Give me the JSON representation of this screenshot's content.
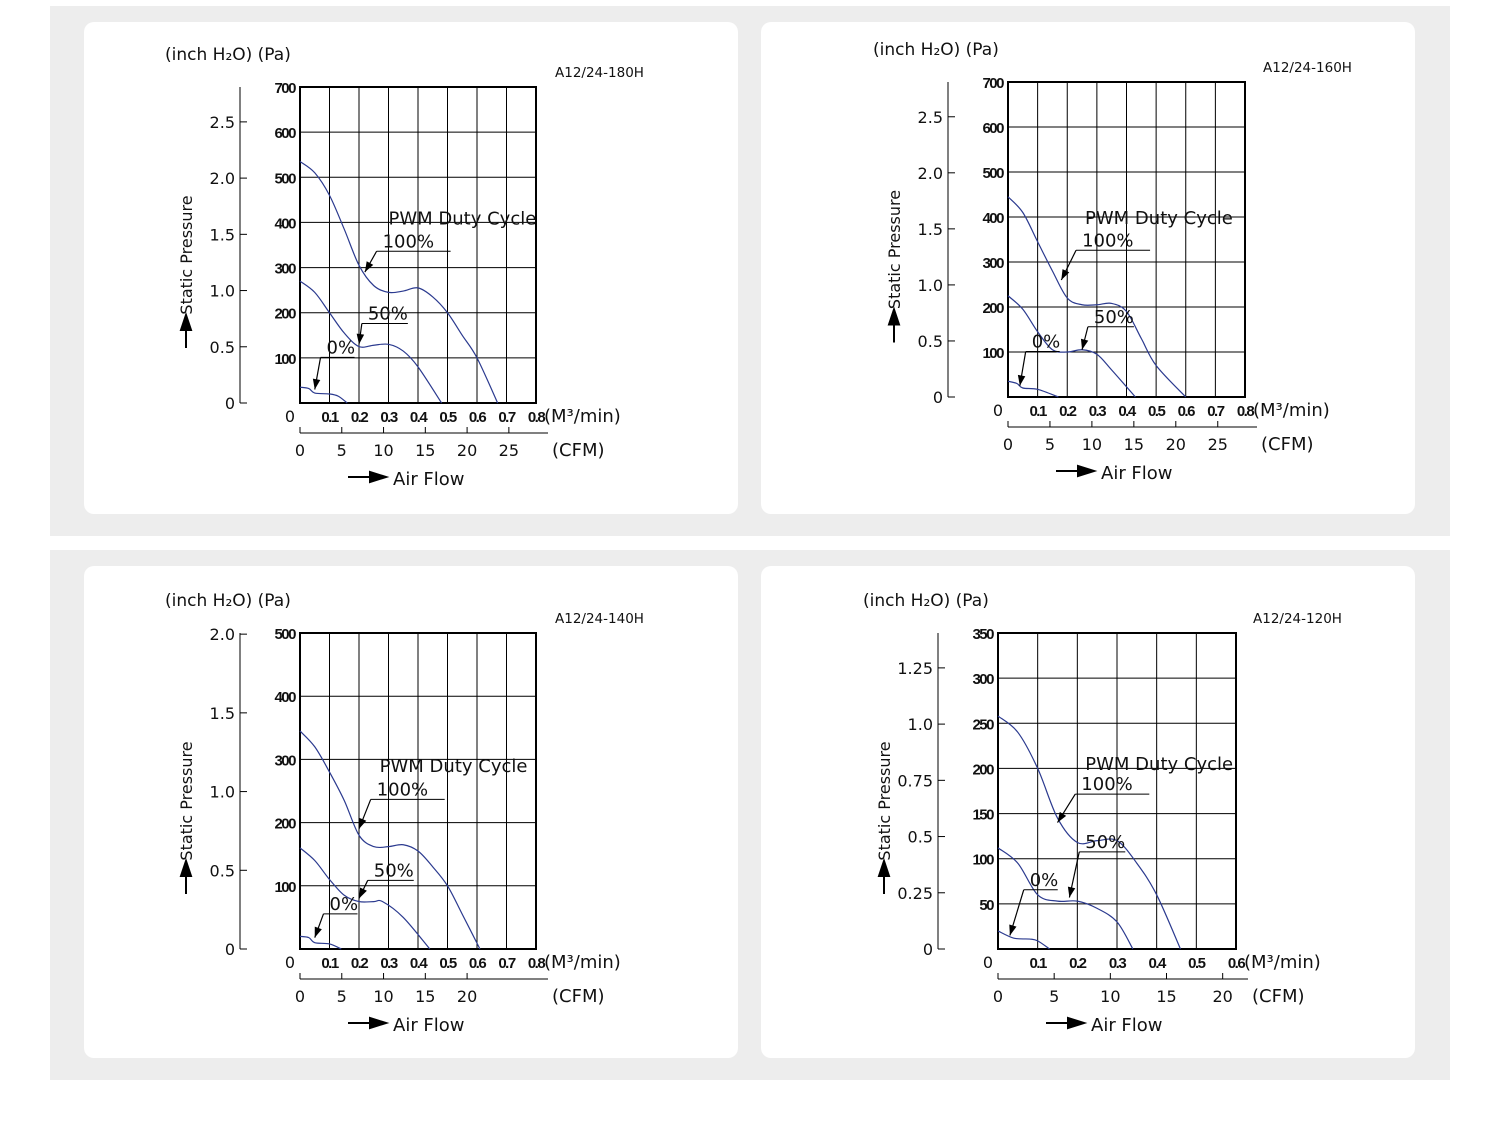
{
  "labels": {
    "unit_title": "(inch H₂O) (Pa)",
    "y_axis": "Static Pressure",
    "x_axis": "Air Flow",
    "x_unit_metric": "(M³/min)",
    "x_unit_cfm": "(CFM)",
    "pwm": "PWM Duty Cycle",
    "series_names": [
      "100%",
      "50%",
      "0%"
    ]
  },
  "colors": {
    "curve": "#2b3a8f",
    "background": "#ededed",
    "card": "#ffffff",
    "grid": "#000000"
  },
  "chart_data": [
    {
      "type": "line",
      "title": "A12/24-180H",
      "xlabel": "Air Flow (M³/min)",
      "ylabel": "Static Pressure (Pa)",
      "xlim": [
        0,
        0.8
      ],
      "ylim": [
        0,
        700
      ],
      "x_ticks": [
        0,
        0.1,
        0.2,
        0.3,
        0.4,
        0.5,
        0.6,
        0.7,
        0.8
      ],
      "y_ticks": [
        100,
        200,
        300,
        400,
        500,
        600,
        700
      ],
      "inch_ticks": [
        0,
        0.5,
        1.0,
        1.5,
        2.0,
        2.5
      ],
      "inch_tick_labels": [
        "0",
        "0.5",
        "1.0",
        "1.5",
        "2.0",
        "2.5"
      ],
      "cfm_ticks": [
        0,
        5,
        10,
        15,
        20,
        25
      ],
      "grid": true,
      "series": [
        {
          "name": "100%",
          "x": [
            0,
            0.05,
            0.1,
            0.15,
            0.2,
            0.25,
            0.3,
            0.35,
            0.4,
            0.45,
            0.5,
            0.55,
            0.6,
            0.67
          ],
          "y": [
            535,
            510,
            460,
            385,
            305,
            260,
            245,
            248,
            255,
            235,
            200,
            150,
            100,
            0
          ]
        },
        {
          "name": "50%",
          "x": [
            0,
            0.05,
            0.1,
            0.15,
            0.2,
            0.25,
            0.3,
            0.35,
            0.4,
            0.48
          ],
          "y": [
            270,
            245,
            200,
            155,
            125,
            128,
            130,
            115,
            80,
            0
          ]
        },
        {
          "name": "0%",
          "x": [
            0,
            0.03,
            0.05,
            0.1,
            0.13,
            0.16
          ],
          "y": [
            35,
            32,
            22,
            20,
            15,
            0
          ]
        }
      ]
    },
    {
      "type": "line",
      "title": "A12/24-160H",
      "xlabel": "Air Flow (M³/min)",
      "ylabel": "Static Pressure (Pa)",
      "xlim": [
        0,
        0.8
      ],
      "ylim": [
        0,
        700
      ],
      "x_ticks": [
        0,
        0.1,
        0.2,
        0.3,
        0.4,
        0.5,
        0.6,
        0.7,
        0.8
      ],
      "y_ticks": [
        100,
        200,
        300,
        400,
        500,
        600,
        700
      ],
      "inch_ticks": [
        0,
        0.5,
        1.0,
        1.5,
        2.0,
        2.5
      ],
      "inch_tick_labels": [
        "0",
        "0.5",
        "1.0",
        "1.5",
        "2.0",
        "2.5"
      ],
      "cfm_ticks": [
        0,
        5,
        10,
        15,
        20,
        25
      ],
      "grid": true,
      "series": [
        {
          "name": "100%",
          "x": [
            0,
            0.05,
            0.1,
            0.15,
            0.2,
            0.25,
            0.3,
            0.35,
            0.4,
            0.45,
            0.5,
            0.6
          ],
          "y": [
            445,
            410,
            345,
            280,
            220,
            205,
            205,
            208,
            190,
            130,
            70,
            0
          ]
        },
        {
          "name": "50%",
          "x": [
            0,
            0.05,
            0.1,
            0.15,
            0.2,
            0.25,
            0.3,
            0.35,
            0.43
          ],
          "y": [
            225,
            195,
            145,
            105,
            100,
            105,
            95,
            60,
            0
          ]
        },
        {
          "name": "0%",
          "x": [
            0,
            0.03,
            0.05,
            0.1,
            0.17
          ],
          "y": [
            35,
            30,
            20,
            17,
            0
          ]
        }
      ]
    },
    {
      "type": "line",
      "title": "A12/24-140H",
      "xlabel": "Air Flow (M³/min)",
      "ylabel": "Static Pressure (Pa)",
      "xlim": [
        0,
        0.8
      ],
      "ylim": [
        0,
        500
      ],
      "x_ticks": [
        0,
        0.1,
        0.2,
        0.3,
        0.4,
        0.5,
        0.6,
        0.7,
        0.8
      ],
      "y_ticks": [
        100,
        200,
        300,
        400,
        500
      ],
      "inch_ticks": [
        0,
        0.5,
        1.0,
        1.5,
        2.0
      ],
      "inch_tick_labels": [
        "0",
        "0.5",
        "1.0",
        "1.5",
        "2.0"
      ],
      "cfm_ticks": [
        0,
        5,
        10,
        15,
        20
      ],
      "grid": true,
      "series": [
        {
          "name": "100%",
          "x": [
            0,
            0.05,
            0.1,
            0.15,
            0.2,
            0.25,
            0.3,
            0.35,
            0.4,
            0.45,
            0.5,
            0.55,
            0.61
          ],
          "y": [
            345,
            320,
            280,
            235,
            180,
            162,
            162,
            165,
            155,
            130,
            100,
            55,
            0
          ]
        },
        {
          "name": "50%",
          "x": [
            0,
            0.05,
            0.1,
            0.15,
            0.2,
            0.25,
            0.28,
            0.35,
            0.44
          ],
          "y": [
            160,
            140,
            110,
            85,
            75,
            75,
            75,
            50,
            0
          ]
        },
        {
          "name": "0%",
          "x": [
            0,
            0.03,
            0.05,
            0.1,
            0.14
          ],
          "y": [
            20,
            18,
            10,
            8,
            0
          ]
        }
      ]
    },
    {
      "type": "line",
      "title": "A12/24-120H",
      "xlabel": "Air Flow (M³/min)",
      "ylabel": "Static Pressure (Pa)",
      "xlim": [
        0,
        0.6
      ],
      "ylim": [
        0,
        350
      ],
      "x_ticks": [
        0,
        0.1,
        0.2,
        0.3,
        0.4,
        0.5,
        0.6
      ],
      "y_ticks": [
        50,
        100,
        150,
        200,
        250,
        300,
        350
      ],
      "inch_ticks": [
        0,
        0.25,
        0.5,
        0.75,
        1.0,
        1.25
      ],
      "inch_tick_labels": [
        "0",
        "0.25",
        "0.5",
        "0.75",
        "1.0",
        "1.25"
      ],
      "cfm_ticks": [
        0,
        5,
        10,
        15,
        20
      ],
      "grid": true,
      "series": [
        {
          "name": "100%",
          "x": [
            0,
            0.05,
            0.1,
            0.15,
            0.2,
            0.25,
            0.3,
            0.35,
            0.4,
            0.46
          ],
          "y": [
            258,
            240,
            200,
            145,
            118,
            120,
            120,
            95,
            60,
            0
          ]
        },
        {
          "name": "50%",
          "x": [
            0,
            0.05,
            0.1,
            0.15,
            0.2,
            0.25,
            0.3,
            0.34
          ],
          "y": [
            112,
            95,
            60,
            53,
            53,
            45,
            30,
            0
          ]
        },
        {
          "name": "0%",
          "x": [
            0,
            0.04,
            0.08,
            0.1,
            0.13
          ],
          "y": [
            20,
            12,
            11,
            9,
            0
          ]
        }
      ]
    }
  ]
}
